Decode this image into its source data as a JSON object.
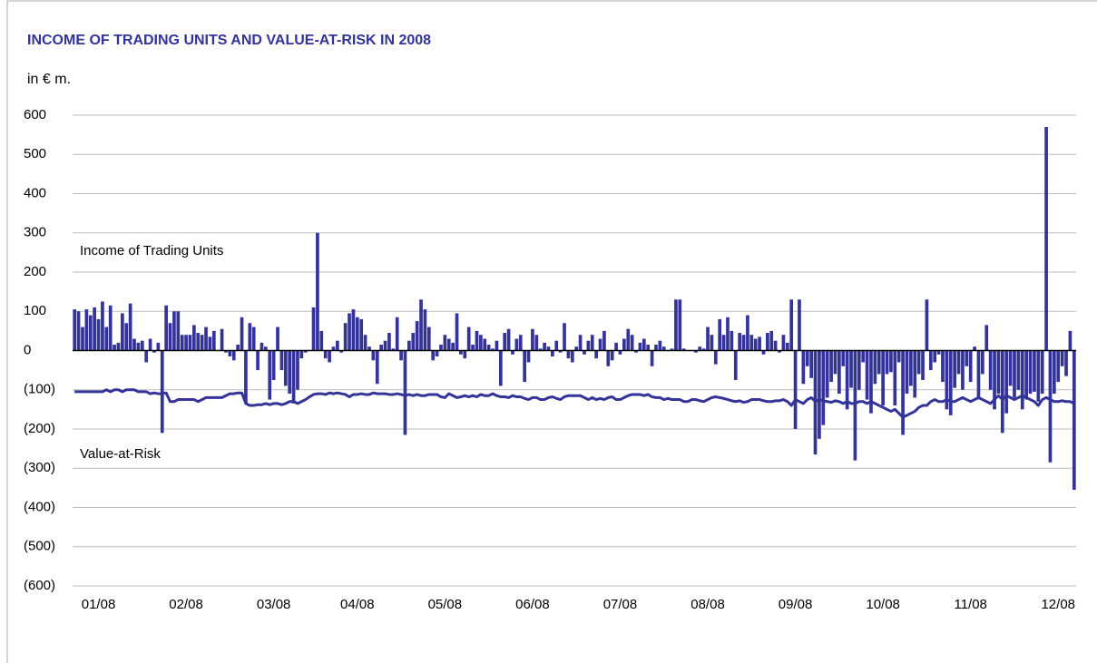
{
  "chart_data": {
    "type": "bar-line",
    "title": "INCOME OF TRADING UNITS AND VALUE-AT-RISK IN 2008",
    "subtitle": "in € m.",
    "annotations": [
      "Income of Trading Units",
      "Value-at-Risk"
    ],
    "categories": [
      null,
      null,
      null,
      null,
      null,
      null,
      "01/08",
      null,
      null,
      null,
      null,
      null,
      null,
      null,
      null,
      null,
      null,
      null,
      null,
      null,
      null,
      null,
      null,
      null,
      null,
      null,
      null,
      null,
      "02/08",
      null,
      null,
      null,
      null,
      null,
      null,
      null,
      null,
      null,
      null,
      null,
      null,
      null,
      null,
      null,
      null,
      null,
      null,
      null,
      null,
      null,
      "03/08",
      null,
      null,
      null,
      null,
      null,
      null,
      null,
      null,
      null,
      null,
      null,
      null,
      null,
      null,
      null,
      null,
      null,
      null,
      null,
      null,
      "04/08",
      null,
      null,
      null,
      null,
      null,
      null,
      null,
      null,
      null,
      null,
      null,
      null,
      null,
      null,
      null,
      null,
      null,
      null,
      null,
      null,
      null,
      "05/08",
      null,
      null,
      null,
      null,
      null,
      null,
      null,
      null,
      null,
      null,
      null,
      null,
      null,
      null,
      null,
      null,
      null,
      null,
      null,
      null,
      null,
      "06/08",
      null,
      null,
      null,
      null,
      null,
      null,
      null,
      null,
      null,
      null,
      null,
      null,
      null,
      null,
      null,
      null,
      null,
      null,
      null,
      null,
      null,
      "07/08",
      null,
      null,
      null,
      null,
      null,
      null,
      null,
      null,
      null,
      null,
      null,
      null,
      null,
      null,
      null,
      null,
      null,
      null,
      null,
      null,
      null,
      "08/08",
      null,
      null,
      null,
      null,
      null,
      null,
      null,
      null,
      null,
      null,
      null,
      null,
      null,
      null,
      null,
      null,
      null,
      null,
      null,
      null,
      null,
      "09/08",
      null,
      null,
      null,
      null,
      null,
      null,
      null,
      null,
      null,
      null,
      null,
      null,
      null,
      null,
      null,
      null,
      null,
      null,
      null,
      null,
      null,
      "10/08",
      null,
      null,
      null,
      null,
      null,
      null,
      null,
      null,
      null,
      null,
      null,
      null,
      null,
      null,
      null,
      null,
      null,
      null,
      null,
      null,
      null,
      "11/08",
      null,
      null,
      null,
      null,
      null,
      null,
      null,
      null,
      null,
      null,
      null,
      null,
      null,
      null,
      null,
      null,
      null,
      null,
      null,
      null,
      null,
      "12/08",
      null,
      null,
      null,
      null
    ],
    "series": [
      {
        "name": "Income of Trading Units",
        "kind": "bar",
        "color": "#333399",
        "values": [
          105,
          100,
          60,
          105,
          90,
          110,
          80,
          125,
          60,
          115,
          15,
          20,
          95,
          70,
          120,
          30,
          20,
          25,
          -30,
          30,
          -5,
          20,
          -210,
          115,
          70,
          100,
          100,
          40,
          40,
          40,
          65,
          45,
          40,
          60,
          35,
          50,
          0,
          55,
          -5,
          -15,
          -25,
          15,
          85,
          -135,
          70,
          60,
          -50,
          20,
          10,
          -125,
          -75,
          60,
          -50,
          -90,
          -110,
          -135,
          -100,
          -20,
          -5,
          0,
          110,
          300,
          50,
          -20,
          -30,
          10,
          25,
          -5,
          70,
          95,
          105,
          85,
          80,
          40,
          10,
          -25,
          -85,
          15,
          25,
          45,
          5,
          85,
          -25,
          -215,
          25,
          45,
          75,
          130,
          105,
          60,
          -25,
          -15,
          15,
          40,
          30,
          20,
          95,
          -10,
          -20,
          60,
          15,
          50,
          40,
          30,
          15,
          5,
          25,
          -90,
          45,
          55,
          -10,
          30,
          40,
          -80,
          -30,
          55,
          40,
          5,
          20,
          10,
          -15,
          25,
          -5,
          70,
          -20,
          -30,
          10,
          40,
          -10,
          25,
          40,
          -20,
          30,
          50,
          -40,
          -25,
          20,
          -10,
          30,
          55,
          40,
          -5,
          20,
          30,
          15,
          -40,
          15,
          25,
          10,
          0,
          5,
          130,
          130,
          5,
          0,
          0,
          -5,
          10,
          5,
          60,
          40,
          -35,
          80,
          40,
          85,
          50,
          -75,
          45,
          40,
          90,
          40,
          30,
          35,
          -10,
          45,
          50,
          25,
          -5,
          40,
          20,
          130,
          -200,
          130,
          -85,
          -40,
          -70,
          -265,
          -225,
          -190,
          -120,
          -80,
          -60,
          -110,
          -40,
          -150,
          -95,
          -280,
          -100,
          -30,
          -125,
          -160,
          -85,
          -60,
          -140,
          -60,
          -55,
          -140,
          -30,
          -215,
          -110,
          -90,
          -120,
          -60,
          -75,
          130,
          -50,
          -30,
          -10,
          -80,
          -150,
          -165,
          -95,
          -60,
          -100,
          -40,
          -80,
          10,
          -120,
          -60,
          65,
          -100,
          -150,
          -110,
          -210,
          -160,
          -90,
          -120,
          -100,
          -150,
          -125,
          -110,
          -105,
          -130,
          -110,
          570,
          -285,
          -110,
          -80,
          -40,
          -65,
          50,
          -355
        ]
      },
      {
        "name": "Value-at-Risk",
        "kind": "line",
        "color": "#333399",
        "values": [
          -105,
          -105,
          -105,
          -105,
          -105,
          -105,
          -105,
          -105,
          -100,
          -105,
          -100,
          -100,
          -105,
          -100,
          -100,
          -100,
          -105,
          -105,
          -105,
          -110,
          -108,
          -110,
          -110,
          -108,
          -130,
          -130,
          -125,
          -125,
          -125,
          -125,
          -125,
          -130,
          -125,
          -120,
          -120,
          -120,
          -120,
          -120,
          -115,
          -110,
          -110,
          -108,
          -108,
          -135,
          -140,
          -140,
          -138,
          -138,
          -135,
          -138,
          -135,
          -135,
          -138,
          -135,
          -130,
          -130,
          -135,
          -130,
          -125,
          -118,
          -112,
          -110,
          -110,
          -112,
          -108,
          -110,
          -108,
          -110,
          -112,
          -118,
          -112,
          -112,
          -110,
          -112,
          -112,
          -108,
          -110,
          -110,
          -110,
          -112,
          -112,
          -110,
          -112,
          -115,
          -112,
          -115,
          -112,
          -115,
          -115,
          -112,
          -112,
          -112,
          -118,
          -120,
          -110,
          -115,
          -120,
          -118,
          -115,
          -118,
          -115,
          -118,
          -112,
          -115,
          -115,
          -110,
          -115,
          -118,
          -118,
          -120,
          -115,
          -118,
          -118,
          -122,
          -125,
          -120,
          -120,
          -125,
          -125,
          -120,
          -118,
          -122,
          -125,
          -118,
          -115,
          -115,
          -115,
          -115,
          -120,
          -125,
          -120,
          -125,
          -122,
          -125,
          -120,
          -118,
          -125,
          -125,
          -120,
          -115,
          -112,
          -112,
          -112,
          -115,
          -112,
          -118,
          -120,
          -120,
          -125,
          -122,
          -125,
          -125,
          -125,
          -130,
          -130,
          -125,
          -125,
          -128,
          -130,
          -125,
          -120,
          -118,
          -120,
          -122,
          -125,
          -128,
          -130,
          -128,
          -132,
          -130,
          -125,
          -125,
          -125,
          -128,
          -130,
          -130,
          -128,
          -128,
          -125,
          -130,
          -140,
          -125,
          -130,
          -135,
          -125,
          -120,
          -130,
          -125,
          -128,
          -130,
          -132,
          -128,
          -130,
          -135,
          -130,
          -135,
          -135,
          -130,
          -130,
          -135,
          -130,
          -135,
          -140,
          -145,
          -150,
          -155,
          -150,
          -160,
          -170,
          -165,
          -160,
          -155,
          -145,
          -140,
          -140,
          -130,
          -125,
          -130,
          -130,
          -125,
          -130,
          -130,
          -125,
          -120,
          -125,
          -130,
          -125,
          -120,
          -125,
          -130,
          -135,
          -125,
          -115,
          -125,
          -115,
          -120,
          -125,
          -120,
          -115,
          -120,
          -125,
          -130,
          -140,
          -125,
          -120,
          -125,
          -130,
          -130,
          -128,
          -130,
          -130,
          -135
        ]
      }
    ],
    "ylim": [
      -600,
      600
    ],
    "yticks": [
      {
        "value": -600,
        "label": "(600)"
      },
      {
        "value": -500,
        "label": "(500)"
      },
      {
        "value": -400,
        "label": "(400)"
      },
      {
        "value": -300,
        "label": "(300)"
      },
      {
        "value": -200,
        "label": "(200)"
      },
      {
        "value": -100,
        "label": "(100)"
      },
      0,
      100,
      200,
      300,
      400,
      500,
      600
    ],
    "grid": true
  }
}
